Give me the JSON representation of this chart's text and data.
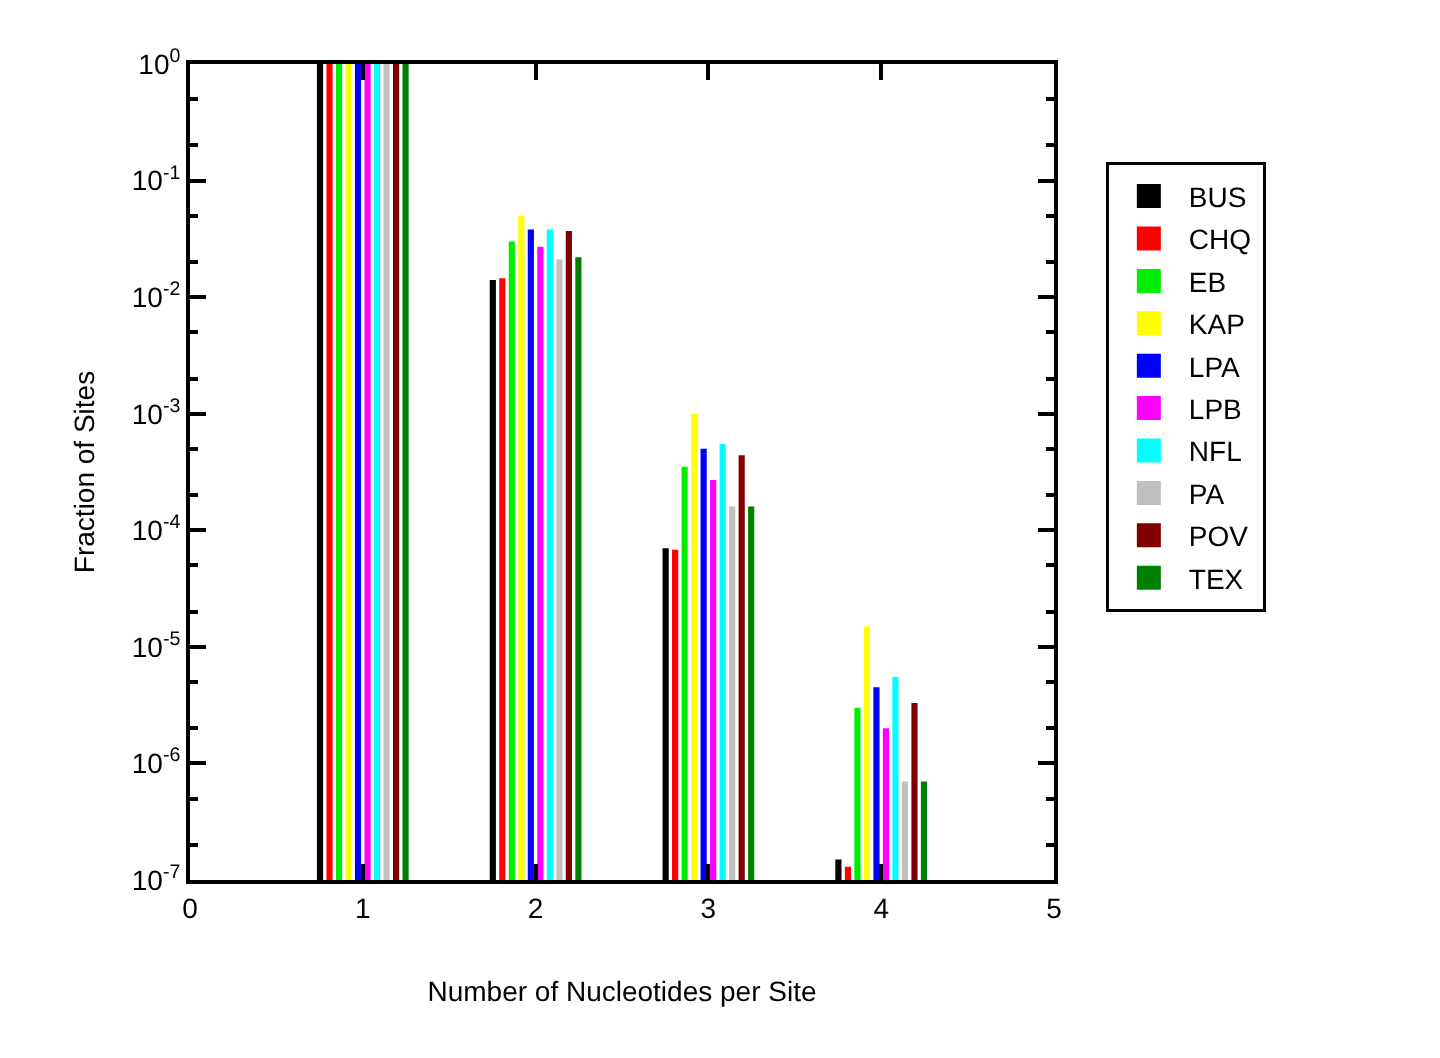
{
  "chart_data": {
    "type": "bar",
    "xlabel": "Number of Nucleotides per Site",
    "ylabel": "Fraction of Sites",
    "x": [
      1,
      2,
      3,
      4
    ],
    "series": [
      {
        "name": "BUS",
        "color": "#000000",
        "values": [
          1.0,
          0.014,
          7e-05,
          1.5e-07
        ]
      },
      {
        "name": "CHQ",
        "color": "#ff0000",
        "values": [
          1.0,
          0.0145,
          6.8e-05,
          1.3e-07
        ]
      },
      {
        "name": "EB",
        "color": "#00ee00",
        "values": [
          1.0,
          0.03,
          0.00035,
          3e-06
        ]
      },
      {
        "name": "KAP",
        "color": "#ffff00",
        "values": [
          1.0,
          0.05,
          0.001,
          1.5e-05
        ]
      },
      {
        "name": "LPA",
        "color": "#0000ff",
        "values": [
          1.0,
          0.038,
          0.0005,
          4.5e-06
        ]
      },
      {
        "name": "LPB",
        "color": "#ff00ff",
        "values": [
          1.0,
          0.027,
          0.00027,
          2e-06
        ]
      },
      {
        "name": "NFL",
        "color": "#00ffff",
        "values": [
          1.0,
          0.038,
          0.00055,
          5.5e-06
        ]
      },
      {
        "name": "PA",
        "color": "#c0c0c0",
        "values": [
          1.0,
          0.021,
          0.00016,
          7e-07
        ]
      },
      {
        "name": "POV",
        "color": "#800000",
        "values": [
          1.0,
          0.037,
          0.00044,
          3.3e-06
        ]
      },
      {
        "name": "TEX",
        "color": "#008000",
        "values": [
          1.0,
          0.022,
          0.00016,
          7e-07
        ]
      }
    ],
    "xlim": [
      0,
      5
    ],
    "xticks": [
      0,
      1,
      2,
      3,
      4,
      5
    ],
    "ylim": [
      1e-07,
      1
    ],
    "yticks": [
      {
        "value": 1,
        "label": "10$^{0}$"
      },
      {
        "value": 0.1,
        "label": "10$^{-1}$"
      },
      {
        "value": 0.01,
        "label": "10$^{-2}$"
      },
      {
        "value": 0.001,
        "label": "10$^{-3}$"
      },
      {
        "value": 0.0001,
        "label": "10$^{-4}$"
      },
      {
        "value": 1e-05,
        "label": "10$^{-5}$"
      },
      {
        "value": 1e-06,
        "label": "10$^{-6}$"
      },
      {
        "value": 1e-07,
        "label": "10$^{-7}$"
      }
    ],
    "log": "y",
    "legend": "right"
  }
}
